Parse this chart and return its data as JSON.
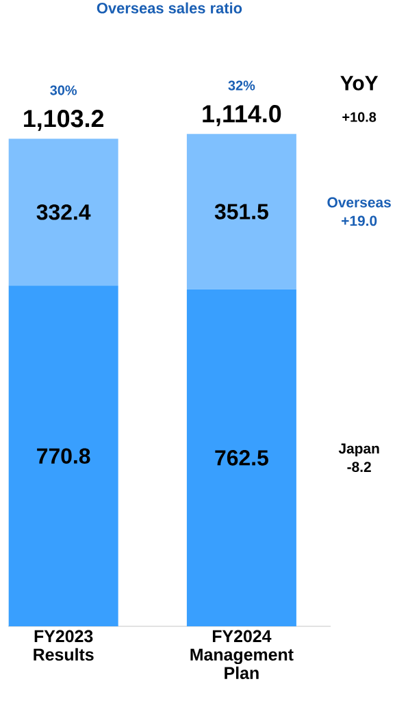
{
  "chart_data": {
    "type": "bar",
    "stacked": true,
    "data_labels": true,
    "tick_labels": "x",
    "categories": [
      "FY2023 Results",
      "FY2024 Management Plan"
    ],
    "series": [
      {
        "color": "#399ffe",
        "values": [
          770.8,
          762.5
        ]
      },
      {
        "color": "#7fc0fe",
        "values": [
          332.4,
          351.5
        ]
      }
    ],
    "totals": [
      "1,103.2",
      "1,114.0"
    ],
    "annotations": [
      "Overseas sales ratio",
      "30%",
      "32%",
      "YoY",
      "+10.8",
      "Overseas +19.0",
      "Japan -8.2"
    ]
  }
}
